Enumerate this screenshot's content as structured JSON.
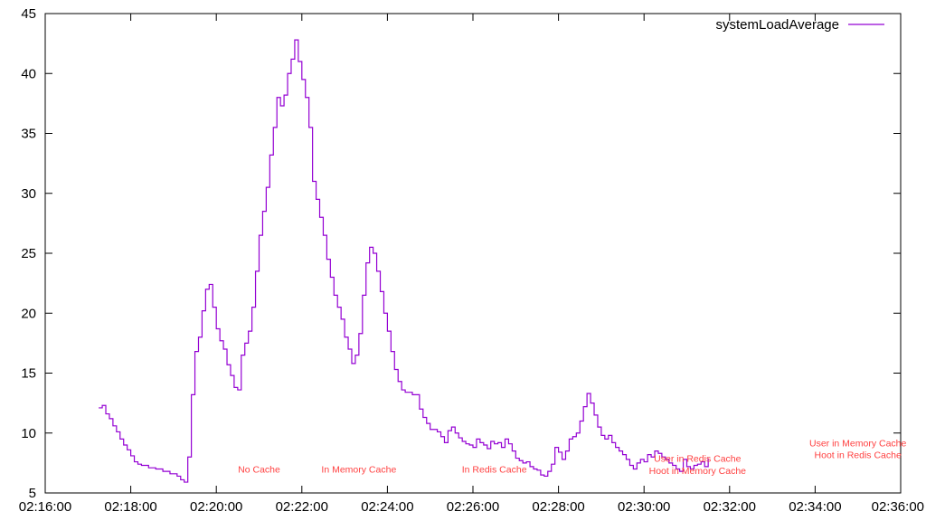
{
  "chart_data": {
    "type": "line",
    "title": "",
    "xlabel": "",
    "ylabel": "",
    "x_type": "time",
    "xlim": [
      "02:16:00",
      "02:36:00"
    ],
    "ylim": [
      5,
      45
    ],
    "grid": false,
    "legend_position": "top-right",
    "x_ticks": [
      "02:16:00",
      "02:18:00",
      "02:20:00",
      "02:22:00",
      "02:24:00",
      "02:26:00",
      "02:28:00",
      "02:30:00",
      "02:32:00",
      "02:34:00",
      "02:36:00"
    ],
    "y_ticks": [
      5,
      10,
      15,
      20,
      25,
      30,
      35,
      40,
      45
    ],
    "series": [
      {
        "name": "systemLoadAverage",
        "color": "#9400d3",
        "step": true,
        "points": [
          [
            "02:17:15",
            12.1
          ],
          [
            "02:17:20",
            12.3
          ],
          [
            "02:17:25",
            11.6
          ],
          [
            "02:17:30",
            11.2
          ],
          [
            "02:17:35",
            10.6
          ],
          [
            "02:17:40",
            10.1
          ],
          [
            "02:17:45",
            9.5
          ],
          [
            "02:17:50",
            9.0
          ],
          [
            "02:17:55",
            8.6
          ],
          [
            "02:18:00",
            8.1
          ],
          [
            "02:18:05",
            7.6
          ],
          [
            "02:18:10",
            7.4
          ],
          [
            "02:18:15",
            7.3
          ],
          [
            "02:18:25",
            7.1
          ],
          [
            "02:18:35",
            7.0
          ],
          [
            "02:18:45",
            6.8
          ],
          [
            "02:18:55",
            6.6
          ],
          [
            "02:19:05",
            6.4
          ],
          [
            "02:19:10",
            6.1
          ],
          [
            "02:19:15",
            5.9
          ],
          [
            "02:19:20",
            8.0
          ],
          [
            "02:19:25",
            13.2
          ],
          [
            "02:19:30",
            16.8
          ],
          [
            "02:19:35",
            18.0
          ],
          [
            "02:19:40",
            20.2
          ],
          [
            "02:19:45",
            22.0
          ],
          [
            "02:19:50",
            22.4
          ],
          [
            "02:19:55",
            20.5
          ],
          [
            "02:20:00",
            18.7
          ],
          [
            "02:20:05",
            17.7
          ],
          [
            "02:20:10",
            17.0
          ],
          [
            "02:20:15",
            15.7
          ],
          [
            "02:20:20",
            14.8
          ],
          [
            "02:20:25",
            13.8
          ],
          [
            "02:20:30",
            13.6
          ],
          [
            "02:20:35",
            16.5
          ],
          [
            "02:20:40",
            17.5
          ],
          [
            "02:20:45",
            18.5
          ],
          [
            "02:20:50",
            20.5
          ],
          [
            "02:20:55",
            23.5
          ],
          [
            "02:21:00",
            26.5
          ],
          [
            "02:21:05",
            28.5
          ],
          [
            "02:21:10",
            30.5
          ],
          [
            "02:21:15",
            33.2
          ],
          [
            "02:21:20",
            35.5
          ],
          [
            "02:21:25",
            38.0
          ],
          [
            "02:21:30",
            37.3
          ],
          [
            "02:21:35",
            38.2
          ],
          [
            "02:21:40",
            40.0
          ],
          [
            "02:21:45",
            41.2
          ],
          [
            "02:21:50",
            42.8
          ],
          [
            "02:21:55",
            41.0
          ],
          [
            "02:22:00",
            39.5
          ],
          [
            "02:22:05",
            38.0
          ],
          [
            "02:22:10",
            35.5
          ],
          [
            "02:22:15",
            31.0
          ],
          [
            "02:22:20",
            29.5
          ],
          [
            "02:22:25",
            28.0
          ],
          [
            "02:22:30",
            26.5
          ],
          [
            "02:22:35",
            24.5
          ],
          [
            "02:22:40",
            23.0
          ],
          [
            "02:22:45",
            21.5
          ],
          [
            "02:22:50",
            20.5
          ],
          [
            "02:22:55",
            19.5
          ],
          [
            "02:23:00",
            18.0
          ],
          [
            "02:23:05",
            17.0
          ],
          [
            "02:23:10",
            15.8
          ],
          [
            "02:23:15",
            16.5
          ],
          [
            "02:23:20",
            18.3
          ],
          [
            "02:23:25",
            21.5
          ],
          [
            "02:23:30",
            24.2
          ],
          [
            "02:23:35",
            25.5
          ],
          [
            "02:23:40",
            25.0
          ],
          [
            "02:23:45",
            23.5
          ],
          [
            "02:23:50",
            21.8
          ],
          [
            "02:23:55",
            20.0
          ],
          [
            "02:24:00",
            18.5
          ],
          [
            "02:24:05",
            16.8
          ],
          [
            "02:24:10",
            15.3
          ],
          [
            "02:24:15",
            14.3
          ],
          [
            "02:24:20",
            13.6
          ],
          [
            "02:24:25",
            13.4
          ],
          [
            "02:24:35",
            13.2
          ],
          [
            "02:24:45",
            12.0
          ],
          [
            "02:24:50",
            11.3
          ],
          [
            "02:24:55",
            10.8
          ],
          [
            "02:25:00",
            10.3
          ],
          [
            "02:25:10",
            10.1
          ],
          [
            "02:25:15",
            9.7
          ],
          [
            "02:25:20",
            9.2
          ],
          [
            "02:25:25",
            10.2
          ],
          [
            "02:25:30",
            10.5
          ],
          [
            "02:25:35",
            10.0
          ],
          [
            "02:25:40",
            9.6
          ],
          [
            "02:25:45",
            9.3
          ],
          [
            "02:25:50",
            9.1
          ],
          [
            "02:25:55",
            9.0
          ],
          [
            "02:26:00",
            8.8
          ],
          [
            "02:26:05",
            9.5
          ],
          [
            "02:26:10",
            9.2
          ],
          [
            "02:26:15",
            9.0
          ],
          [
            "02:26:20",
            8.7
          ],
          [
            "02:26:25",
            9.3
          ],
          [
            "02:26:30",
            9.1
          ],
          [
            "02:26:35",
            9.2
          ],
          [
            "02:26:40",
            8.8
          ],
          [
            "02:26:45",
            9.5
          ],
          [
            "02:26:50",
            9.1
          ],
          [
            "02:26:55",
            8.5
          ],
          [
            "02:27:00",
            7.9
          ],
          [
            "02:27:05",
            7.7
          ],
          [
            "02:27:10",
            7.5
          ],
          [
            "02:27:15",
            7.6
          ],
          [
            "02:27:20",
            7.2
          ],
          [
            "02:27:25",
            7.0
          ],
          [
            "02:27:30",
            6.9
          ],
          [
            "02:27:35",
            6.5
          ],
          [
            "02:27:40",
            6.4
          ],
          [
            "02:27:45",
            6.8
          ],
          [
            "02:27:50",
            7.4
          ],
          [
            "02:27:55",
            8.8
          ],
          [
            "02:28:00",
            8.4
          ],
          [
            "02:28:05",
            7.8
          ],
          [
            "02:28:10",
            8.5
          ],
          [
            "02:28:15",
            9.5
          ],
          [
            "02:28:20",
            9.7
          ],
          [
            "02:28:25",
            10.0
          ],
          [
            "02:28:30",
            11.0
          ],
          [
            "02:28:35",
            12.2
          ],
          [
            "02:28:40",
            13.3
          ],
          [
            "02:28:45",
            12.5
          ],
          [
            "02:28:50",
            11.5
          ],
          [
            "02:28:55",
            10.5
          ],
          [
            "02:29:00",
            9.8
          ],
          [
            "02:29:05",
            9.5
          ],
          [
            "02:29:10",
            9.8
          ],
          [
            "02:29:15",
            9.2
          ],
          [
            "02:29:20",
            8.8
          ],
          [
            "02:29:25",
            8.5
          ],
          [
            "02:29:30",
            8.2
          ],
          [
            "02:29:35",
            7.8
          ],
          [
            "02:29:40",
            7.3
          ],
          [
            "02:29:45",
            7.0
          ],
          [
            "02:29:50",
            7.5
          ],
          [
            "02:29:55",
            7.8
          ],
          [
            "02:30:00",
            7.6
          ],
          [
            "02:30:05",
            8.2
          ],
          [
            "02:30:10",
            8.0
          ],
          [
            "02:30:15",
            8.5
          ],
          [
            "02:30:20",
            8.3
          ],
          [
            "02:30:25",
            8.0
          ],
          [
            "02:30:30",
            7.8
          ],
          [
            "02:30:35",
            7.5
          ],
          [
            "02:30:40",
            7.3
          ],
          [
            "02:30:45",
            7.0
          ],
          [
            "02:30:50",
            6.8
          ],
          [
            "02:30:55",
            7.8
          ],
          [
            "02:31:00",
            7.2
          ],
          [
            "02:31:05",
            7.0
          ],
          [
            "02:31:10",
            7.3
          ],
          [
            "02:31:15",
            7.4
          ],
          [
            "02:31:20",
            7.6
          ],
          [
            "02:31:25",
            7.2
          ],
          [
            "02:31:30",
            7.9
          ]
        ]
      }
    ],
    "annotations": [
      {
        "text": "No Cache",
        "x": "02:21:00",
        "y": 6.7,
        "color": "#ff4040"
      },
      {
        "text": "In Memory Cache",
        "x": "02:23:20",
        "y": 6.7,
        "color": "#ff4040"
      },
      {
        "text": "In Redis Cache",
        "x": "02:26:30",
        "y": 6.7,
        "color": "#ff4040"
      },
      {
        "text": "User in Redis Cache",
        "x": "02:31:15",
        "y": 7.6,
        "color": "#ff4040"
      },
      {
        "text": "Hoot in Memory Cache",
        "x": "02:31:15",
        "y": 6.6,
        "color": "#ff4040"
      },
      {
        "text": "User in Memory Cache",
        "x": "02:35:00",
        "y": 8.9,
        "color": "#ff4040"
      },
      {
        "text": "Hoot in Redis Cache",
        "x": "02:35:00",
        "y": 7.9,
        "color": "#ff4040"
      }
    ]
  }
}
